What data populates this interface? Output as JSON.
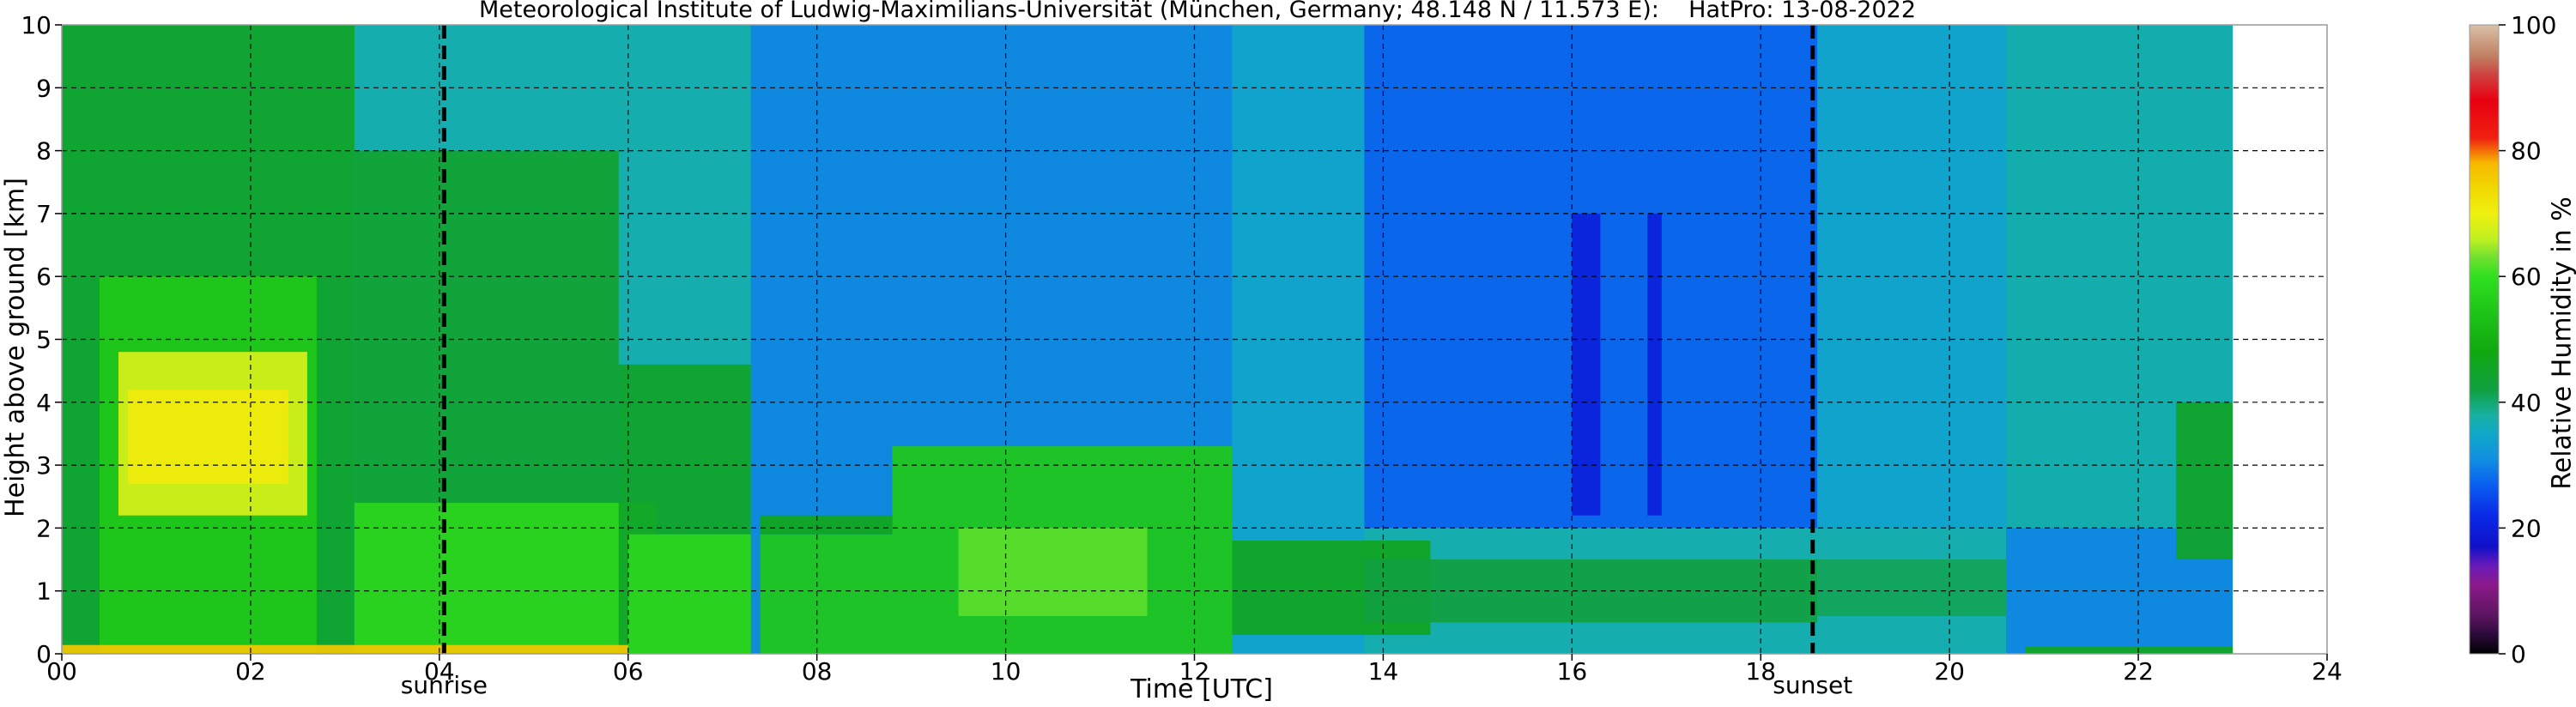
{
  "chart_data": {
    "type": "heatmap",
    "title": "Meteorological Institute of Ludwig-Maximilians-Universität (München, Germany; 48.148 N / 11.573 E):    HatPro: 13-08-2022",
    "xlabel": "Time [UTC]",
    "ylabel": "Height above ground [km]",
    "colorbar_label": "Relative Humidity in %",
    "xlim": [
      0,
      24
    ],
    "ylim": [
      0,
      10
    ],
    "data_extent_x": [
      0,
      23
    ],
    "x_ticks": [
      "00",
      "02",
      "04",
      "06",
      "08",
      "10",
      "12",
      "14",
      "16",
      "18",
      "20",
      "22",
      "24"
    ],
    "y_ticks": [
      "0",
      "1",
      "2",
      "3",
      "4",
      "5",
      "6",
      "7",
      "8",
      "9",
      "10"
    ],
    "colorbar_ticks": [
      "0",
      "20",
      "40",
      "60",
      "80",
      "100"
    ],
    "colorbar_range": [
      0,
      100
    ],
    "grid": true,
    "events": [
      {
        "label": "sunrise",
        "x": 4.05
      },
      {
        "label": "sunset",
        "x": 18.55
      }
    ],
    "colormap": [
      {
        "value": 0,
        "color": "#000000"
      },
      {
        "value": 3,
        "color": "#2a0a3a"
      },
      {
        "value": 6,
        "color": "#5c1460"
      },
      {
        "value": 11,
        "color": "#8b1a8b"
      },
      {
        "value": 14,
        "color": "#6a1ab8"
      },
      {
        "value": 17,
        "color": "#1010c8"
      },
      {
        "value": 22,
        "color": "#0a2ae8"
      },
      {
        "value": 27,
        "color": "#0a60f0"
      },
      {
        "value": 31,
        "color": "#1090e0"
      },
      {
        "value": 35,
        "color": "#10a8c8"
      },
      {
        "value": 38,
        "color": "#18b0a0"
      },
      {
        "value": 42,
        "color": "#10a040"
      },
      {
        "value": 48,
        "color": "#10a810"
      },
      {
        "value": 55,
        "color": "#20c818"
      },
      {
        "value": 60,
        "color": "#30e020"
      },
      {
        "value": 63,
        "color": "#70e030"
      },
      {
        "value": 66,
        "color": "#c0f020"
      },
      {
        "value": 70,
        "color": "#f0f010"
      },
      {
        "value": 74,
        "color": "#f0d800"
      },
      {
        "value": 78,
        "color": "#f8b800"
      },
      {
        "value": 82,
        "color": "#f02010"
      },
      {
        "value": 88,
        "color": "#e80010"
      },
      {
        "value": 92,
        "color": "#d04040"
      },
      {
        "value": 95,
        "color": "#c08060"
      },
      {
        "value": 100,
        "color": "#d8c0a8"
      }
    ],
    "humidity_regions": [
      {
        "t": [
          0,
          23
        ],
        "h": [
          0,
          10
        ],
        "rh": 37,
        "note": "background"
      },
      {
        "t": [
          0,
          3.1
        ],
        "h": [
          0,
          10
        ],
        "rh": 45
      },
      {
        "t": [
          0.4,
          2.7
        ],
        "h": [
          0,
          6
        ],
        "rh": 55
      },
      {
        "t": [
          0.6,
          2.6
        ],
        "h": [
          2.2,
          4.8
        ],
        "rh": 68
      },
      {
        "t": [
          0.7,
          2.4
        ],
        "h": [
          2.7,
          4.2
        ],
        "rh": 71
      },
      {
        "t": [
          3.1,
          5.9
        ],
        "h": [
          0,
          8.0
        ],
        "rh": 44
      },
      {
        "t": [
          3.1,
          6.3
        ],
        "h": [
          0,
          2.4
        ],
        "rh": 58
      },
      {
        "t": [
          5.9,
          7.3
        ],
        "h": [
          0,
          4.6
        ],
        "rh": 45
      },
      {
        "t": [
          6.0,
          7.4
        ],
        "h": [
          0,
          1.9
        ],
        "rh": 58
      },
      {
        "t": [
          7.3,
          12.4
        ],
        "h": [
          0,
          10
        ],
        "rh": 30
      },
      {
        "t": [
          7.4,
          8.8
        ],
        "h": [
          0,
          1.9
        ],
        "rh": 55
      },
      {
        "t": [
          7.4,
          8.8
        ],
        "h": [
          1.9,
          2.2
        ],
        "rh": 47
      },
      {
        "t": [
          8.8,
          12.4
        ],
        "h": [
          0,
          3.3
        ],
        "rh": 55
      },
      {
        "t": [
          9.5,
          11.5
        ],
        "h": [
          0.6,
          2.0
        ],
        "rh": 62
      },
      {
        "t": [
          12.4,
          13.8
        ],
        "h": [
          0,
          10
        ],
        "rh": 34
      },
      {
        "t": [
          12.4,
          14.5
        ],
        "h": [
          0.3,
          1.8
        ],
        "rh": 46
      },
      {
        "t": [
          13.8,
          18.6
        ],
        "h": [
          2.0,
          10
        ],
        "rh": 27
      },
      {
        "t": [
          13.8,
          18.6
        ],
        "h": [
          0.5,
          1.5
        ],
        "rh": 42
      },
      {
        "t": [
          16.0,
          16.3
        ],
        "h": [
          2.2,
          7.0
        ],
        "rh": 20
      },
      {
        "t": [
          16.8,
          16.95
        ],
        "h": [
          2.2,
          7.0
        ],
        "rh": 20
      },
      {
        "t": [
          18.6,
          20.6
        ],
        "h": [
          2.0,
          10
        ],
        "rh": 34
      },
      {
        "t": [
          18.6,
          20.6
        ],
        "h": [
          0.6,
          1.5
        ],
        "rh": 41
      },
      {
        "t": [
          20.6,
          23
        ],
        "h": [
          0,
          2.0
        ],
        "rh": 30
      },
      {
        "t": [
          20.6,
          23
        ],
        "h": [
          2.0,
          10
        ],
        "rh": 37
      },
      {
        "t": [
          20.8,
          23
        ],
        "h": [
          0,
          0.12
        ],
        "rh": 46
      },
      {
        "t": [
          22.4,
          23
        ],
        "h": [
          1.5,
          4.0
        ],
        "rh": 45
      },
      {
        "t": [
          0,
          6.0
        ],
        "h": [
          0,
          0.14
        ],
        "rh": 76
      }
    ]
  }
}
